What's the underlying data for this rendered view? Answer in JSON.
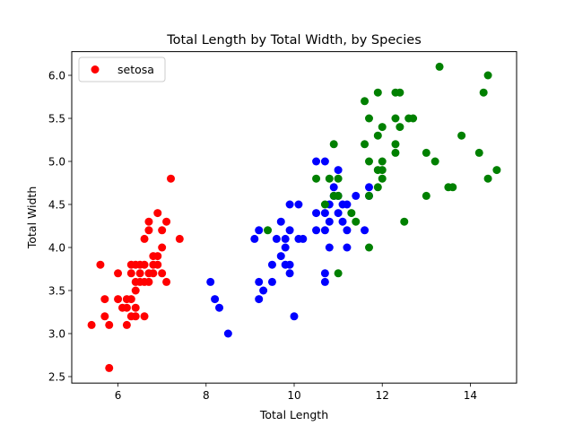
{
  "chart_data": {
    "type": "scatter",
    "title": "Total Length by Total Width, by Species",
    "xlabel": "Total Length",
    "ylabel": "Total Width",
    "xlim": [
      4.95,
      15.05
    ],
    "ylim": [
      2.425,
      6.275
    ],
    "xticks": [
      6,
      8,
      10,
      12,
      14
    ],
    "yticks": [
      2.5,
      3.0,
      3.5,
      4.0,
      4.5,
      5.0,
      5.5,
      6.0
    ],
    "xtick_labels": [
      "6",
      "8",
      "10",
      "12",
      "14"
    ],
    "ytick_labels": [
      "2.5",
      "3.0",
      "3.5",
      "4.0",
      "4.5",
      "5.0",
      "5.5",
      "6.0"
    ],
    "grid": false,
    "legend": {
      "placement": "top-left",
      "entries": [
        "setosa"
      ]
    },
    "series": [
      {
        "name": "setosa",
        "color": "#ff0000",
        "points": [
          [
            5.4,
            3.1
          ],
          [
            5.6,
            3.8
          ],
          [
            5.7,
            3.4
          ],
          [
            5.7,
            3.2
          ],
          [
            5.8,
            3.1
          ],
          [
            5.8,
            2.6
          ],
          [
            6.0,
            3.7
          ],
          [
            6.0,
            3.4
          ],
          [
            6.1,
            3.3
          ],
          [
            6.2,
            3.4
          ],
          [
            6.2,
            3.3
          ],
          [
            6.2,
            3.1
          ],
          [
            6.3,
            3.8
          ],
          [
            6.3,
            3.7
          ],
          [
            6.3,
            3.4
          ],
          [
            6.3,
            3.2
          ],
          [
            6.4,
            3.8
          ],
          [
            6.4,
            3.6
          ],
          [
            6.4,
            3.5
          ],
          [
            6.4,
            3.3
          ],
          [
            6.4,
            3.2
          ],
          [
            6.5,
            3.8
          ],
          [
            6.5,
            3.7
          ],
          [
            6.5,
            3.6
          ],
          [
            6.6,
            3.8
          ],
          [
            6.6,
            3.6
          ],
          [
            6.6,
            3.2
          ],
          [
            6.6,
            4.1
          ],
          [
            6.7,
            4.2
          ],
          [
            6.7,
            4.3
          ],
          [
            6.7,
            3.6
          ],
          [
            6.7,
            3.7
          ],
          [
            6.8,
            3.8
          ],
          [
            6.8,
            3.7
          ],
          [
            6.8,
            3.9
          ],
          [
            6.9,
            4.4
          ],
          [
            6.9,
            3.8
          ],
          [
            6.9,
            3.9
          ],
          [
            7.0,
            4.2
          ],
          [
            7.0,
            4.0
          ],
          [
            7.0,
            3.7
          ],
          [
            7.1,
            4.3
          ],
          [
            7.1,
            3.6
          ],
          [
            7.2,
            4.8
          ],
          [
            7.4,
            4.1
          ]
        ]
      },
      {
        "color": "#0000ff",
        "points": [
          [
            8.1,
            3.6
          ],
          [
            8.2,
            3.4
          ],
          [
            8.3,
            3.3
          ],
          [
            8.5,
            3.0
          ],
          [
            9.1,
            4.1
          ],
          [
            9.2,
            4.2
          ],
          [
            9.2,
            3.6
          ],
          [
            9.2,
            3.4
          ],
          [
            9.3,
            3.5
          ],
          [
            9.5,
            3.8
          ],
          [
            9.5,
            3.6
          ],
          [
            9.6,
            4.1
          ],
          [
            9.7,
            4.3
          ],
          [
            9.7,
            3.9
          ],
          [
            9.8,
            4.1
          ],
          [
            9.8,
            4.0
          ],
          [
            9.8,
            3.8
          ],
          [
            9.9,
            4.2
          ],
          [
            9.9,
            4.5
          ],
          [
            9.9,
            3.8
          ],
          [
            9.9,
            3.7
          ],
          [
            10.0,
            3.2
          ],
          [
            10.1,
            4.5
          ],
          [
            10.1,
            4.1
          ],
          [
            10.2,
            4.1
          ],
          [
            10.5,
            5.0
          ],
          [
            10.5,
            4.4
          ],
          [
            10.5,
            4.2
          ],
          [
            10.7,
            5.0
          ],
          [
            10.7,
            4.4
          ],
          [
            10.7,
            4.2
          ],
          [
            10.7,
            3.7
          ],
          [
            10.7,
            3.6
          ],
          [
            10.8,
            4.5
          ],
          [
            10.8,
            4.3
          ],
          [
            10.8,
            4.0
          ],
          [
            10.9,
            4.7
          ],
          [
            10.9,
            4.6
          ],
          [
            11.0,
            4.9
          ],
          [
            11.0,
            4.4
          ],
          [
            11.0,
            4.6
          ],
          [
            11.1,
            4.5
          ],
          [
            11.1,
            4.3
          ],
          [
            11.2,
            4.5
          ],
          [
            11.2,
            4.2
          ],
          [
            11.2,
            4.0
          ],
          [
            11.4,
            4.6
          ],
          [
            11.6,
            4.2
          ],
          [
            11.7,
            4.7
          ],
          [
            11.7,
            4.6
          ]
        ]
      },
      {
        "color": "#008000",
        "points": [
          [
            9.4,
            4.2
          ],
          [
            10.5,
            4.8
          ],
          [
            10.7,
            4.5
          ],
          [
            10.8,
            4.8
          ],
          [
            10.9,
            5.2
          ],
          [
            10.9,
            4.6
          ],
          [
            11.0,
            4.8
          ],
          [
            11.0,
            4.6
          ],
          [
            11.0,
            3.7
          ],
          [
            11.3,
            4.4
          ],
          [
            11.4,
            4.3
          ],
          [
            11.6,
            5.7
          ],
          [
            11.6,
            5.2
          ],
          [
            11.7,
            5.5
          ],
          [
            11.7,
            5.0
          ],
          [
            11.7,
            4.6
          ],
          [
            11.7,
            4.0
          ],
          [
            11.9,
            5.8
          ],
          [
            11.9,
            5.3
          ],
          [
            11.9,
            4.9
          ],
          [
            11.9,
            4.7
          ],
          [
            12.0,
            5.4
          ],
          [
            12.0,
            5.0
          ],
          [
            12.0,
            4.9
          ],
          [
            12.0,
            4.8
          ],
          [
            12.3,
            5.8
          ],
          [
            12.3,
            5.5
          ],
          [
            12.3,
            5.2
          ],
          [
            12.3,
            5.1
          ],
          [
            12.4,
            5.8
          ],
          [
            12.4,
            5.4
          ],
          [
            12.5,
            4.3
          ],
          [
            12.6,
            5.5
          ],
          [
            12.7,
            5.5
          ],
          [
            13.0,
            5.1
          ],
          [
            13.0,
            4.6
          ],
          [
            13.2,
            5.0
          ],
          [
            13.3,
            6.1
          ],
          [
            13.5,
            4.7
          ],
          [
            13.6,
            4.7
          ],
          [
            13.8,
            5.3
          ],
          [
            14.2,
            5.1
          ],
          [
            14.3,
            5.8
          ],
          [
            14.4,
            6.0
          ],
          [
            14.4,
            4.8
          ],
          [
            14.6,
            4.9
          ]
        ]
      }
    ]
  }
}
